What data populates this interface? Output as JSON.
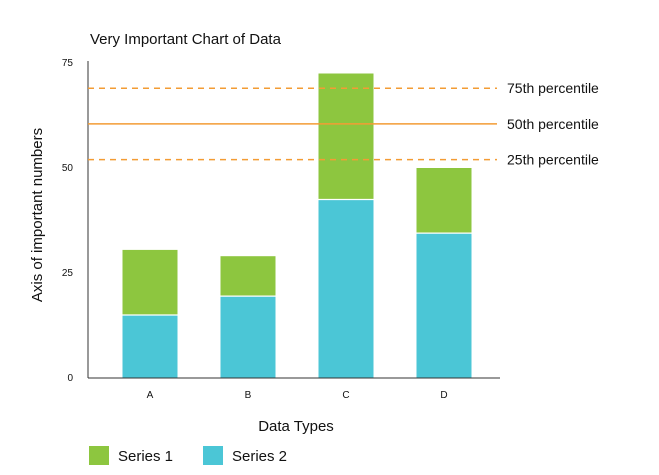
{
  "chart_data": {
    "type": "bar",
    "stacked": true,
    "title": "Very Important Chart of Data",
    "xlabel": "Data Types",
    "ylabel": "Axis of important numbers",
    "categories": [
      "A",
      "B",
      "C",
      "D"
    ],
    "ylim": [
      0,
      75
    ],
    "yticks": [
      "0",
      "25",
      "50",
      "75"
    ],
    "series": [
      {
        "name": "Series 2",
        "color": "#4bc6d6",
        "values": [
          15,
          19.5,
          42.5,
          34.5
        ]
      },
      {
        "name": "Series 1",
        "color": "#8dc63f",
        "values": [
          15.5,
          9.5,
          30,
          15.5
        ]
      }
    ],
    "reference_lines": [
      {
        "label": "75th percentile",
        "value": 69,
        "style": "dashed",
        "color": "#f39c34"
      },
      {
        "label": "50th percentile",
        "value": 60.5,
        "style": "solid",
        "color": "#f39c34"
      },
      {
        "label": "25th percentile",
        "value": 52,
        "style": "dashed",
        "color": "#f39c34"
      }
    ],
    "legend": {
      "placement": "bottom-left",
      "entries": [
        {
          "name": "Series 1",
          "color": "#8dc63f"
        },
        {
          "name": "Series 2",
          "color": "#4bc6d6"
        }
      ]
    },
    "grid": false
  }
}
